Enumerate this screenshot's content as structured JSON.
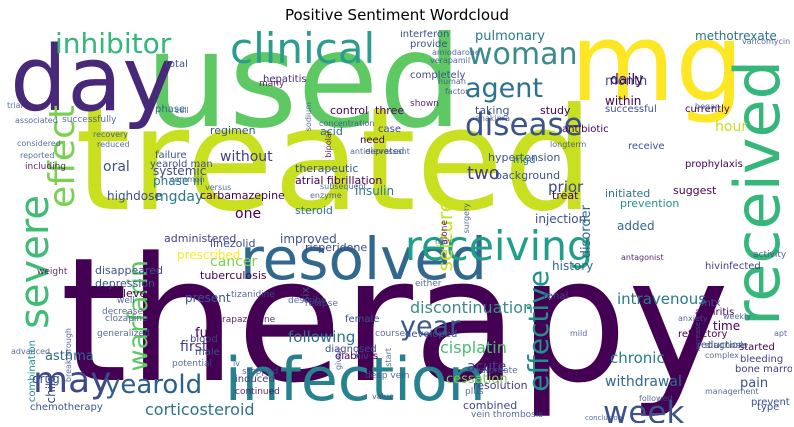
{
  "title": "Positive Sentiment Wordcloud",
  "colormap": [
    "#440154",
    "#3b528b",
    "#21918c",
    "#5ec962",
    "#fde725"
  ],
  "words": [
    {
      "text": "therapy",
      "color": "#440154"
    },
    {
      "text": "treated",
      "color": "#c8e020"
    },
    {
      "text": "used",
      "color": "#5ec962"
    },
    {
      "text": "mg",
      "color": "#fde725"
    },
    {
      "text": "day",
      "color": "#482878"
    },
    {
      "text": "infection",
      "color": "#26828e"
    },
    {
      "text": "resolved",
      "color": "#31688e"
    },
    {
      "text": "receiving",
      "color": "#1f9e89"
    },
    {
      "text": "received",
      "color": "#35b779"
    },
    {
      "text": "clinical",
      "color": "#2a9d8c"
    },
    {
      "text": "severe",
      "color": "#3ebc74"
    },
    {
      "text": "effect",
      "color": "#7ad151"
    },
    {
      "text": "inhibitor",
      "color": "#35b779"
    },
    {
      "text": "woman",
      "color": "#3b8b8c"
    },
    {
      "text": "disease",
      "color": "#3b528b"
    },
    {
      "text": "agent",
      "color": "#2c728e"
    },
    {
      "text": "may",
      "color": "#3e4989"
    },
    {
      "text": "yearold",
      "color": "#2b5f8c"
    },
    {
      "text": "week",
      "color": "#3b528b"
    },
    {
      "text": "year",
      "color": "#38588c"
    },
    {
      "text": "effective",
      "color": "#21918c"
    },
    {
      "text": "warfarin",
      "color": "#5ec962"
    },
    {
      "text": "corticosteroid",
      "color": "#2c728e"
    },
    {
      "text": "discontinuation",
      "color": "#3b8b8c"
    },
    {
      "text": "intravenous",
      "color": "#2a788e"
    },
    {
      "text": "withdrawal",
      "color": "#31688e"
    },
    {
      "text": "cisplatin",
      "color": "#44bf70"
    },
    {
      "text": "following",
      "color": "#2c728e"
    },
    {
      "text": "chronic",
      "color": "#287d8e"
    },
    {
      "text": "acute",
      "color": "#433e85"
    },
    {
      "text": "hour",
      "color": "#c2df23"
    },
    {
      "text": "month",
      "color": "#3b528b"
    },
    {
      "text": "within",
      "color": "#440154"
    },
    {
      "text": "daily",
      "color": "#440154"
    },
    {
      "text": "pulmonary",
      "color": "#2a788e"
    },
    {
      "text": "methotrexate",
      "color": "#2c728e"
    },
    {
      "text": "without",
      "color": "#433e85"
    },
    {
      "text": "phase iii",
      "color": "#2a788e"
    },
    {
      "text": "mgday",
      "color": "#2a788e"
    },
    {
      "text": "systemic",
      "color": "#3e4989"
    },
    {
      "text": "highdose",
      "color": "#3b528b"
    },
    {
      "text": "oral",
      "color": "#3b528b"
    },
    {
      "text": "two",
      "color": "#433e85"
    },
    {
      "text": "prior",
      "color": "#3e4989"
    },
    {
      "text": "seizure",
      "color": "#c8e020"
    },
    {
      "text": "disorder",
      "color": "#31688e"
    },
    {
      "text": "first",
      "color": "#433e85"
    },
    {
      "text": "fu",
      "color": "#440154"
    },
    {
      "text": "asthma",
      "color": "#31688e"
    },
    {
      "text": "child",
      "color": "#3e4989"
    },
    {
      "text": "cancer",
      "color": "#7ad151"
    },
    {
      "text": "one",
      "color": "#440154"
    },
    {
      "text": "present",
      "color": "#3b528b"
    },
    {
      "text": "improved",
      "color": "#3b528b"
    },
    {
      "text": "history",
      "color": "#31688e"
    },
    {
      "text": "added",
      "color": "#31688e"
    },
    {
      "text": "pain",
      "color": "#3b528b"
    },
    {
      "text": "time",
      "color": "#440154"
    },
    {
      "text": "six",
      "color": "#3b528b"
    },
    {
      "text": "cessation",
      "color": "#7ad151"
    },
    {
      "text": "combined",
      "color": "#3e4989"
    },
    {
      "text": "resolution",
      "color": "#433e85"
    },
    {
      "text": "prescribed",
      "color": "#fde725"
    },
    {
      "text": "carbamazepine",
      "color": "#440154"
    },
    {
      "text": "linezolid",
      "color": "#3b528b"
    },
    {
      "text": "tuberculosis",
      "color": "#440154"
    },
    {
      "text": "risperidone",
      "color": "#3e4989"
    },
    {
      "text": "insulin",
      "color": "#2a788e"
    },
    {
      "text": "steroid",
      "color": "#2c728e"
    },
    {
      "text": "injection",
      "color": "#3b528b"
    },
    {
      "text": "treat",
      "color": "#440154"
    },
    {
      "text": "initiated",
      "color": "#2c728e"
    },
    {
      "text": "prevention",
      "color": "#21918c"
    },
    {
      "text": "suggest",
      "color": "#440154"
    },
    {
      "text": "hypertension",
      "color": "#3b528b"
    },
    {
      "text": "background",
      "color": "#3b528b"
    },
    {
      "text": "atrial fibrillation",
      "color": "#440154"
    },
    {
      "text": "therapeutic",
      "color": "#3b528b"
    },
    {
      "text": "regimen",
      "color": "#3b528b"
    },
    {
      "text": "hepatitis",
      "color": "#482878"
    },
    {
      "text": "study",
      "color": "#440154"
    },
    {
      "text": "successful",
      "color": "#3b528b"
    },
    {
      "text": "taking",
      "color": "#3b528b"
    },
    {
      "text": "control",
      "color": "#440154"
    },
    {
      "text": "three",
      "color": "#440154"
    },
    {
      "text": "acid",
      "color": "#31688e"
    },
    {
      "text": "case",
      "color": "#3e4989"
    },
    {
      "text": "need",
      "color": "#440154"
    },
    {
      "text": "elevated",
      "color": "#3b528b"
    },
    {
      "text": "mgd",
      "color": "#2c728e"
    },
    {
      "text": "failure",
      "color": "#3b528b"
    },
    {
      "text": "yearold man",
      "color": "#3b528b"
    },
    {
      "text": "administered",
      "color": "#433e85"
    },
    {
      "text": "disappeared",
      "color": "#3b528b"
    },
    {
      "text": "depression",
      "color": "#3b528b"
    },
    {
      "text": "level",
      "color": "#440154"
    },
    {
      "text": "male",
      "color": "#3b528b"
    },
    {
      "text": "diagnosed",
      "color": "#3e4989"
    },
    {
      "text": "combination",
      "color": "#21918c"
    },
    {
      "text": "chemotherapy",
      "color": "#3b528b"
    },
    {
      "text": "induced",
      "color": "#433e85"
    },
    {
      "text": "diabetes",
      "color": "#440154"
    },
    {
      "text": "female",
      "color": "#3b528b"
    },
    {
      "text": "developed",
      "color": "#3b528b"
    },
    {
      "text": "blood",
      "color": "#433e85"
    },
    {
      "text": "renal",
      "color": "#433e85"
    },
    {
      "text": "bleeding",
      "color": "#433e85"
    },
    {
      "text": "bone marrow",
      "color": "#433e85"
    },
    {
      "text": "started",
      "color": "#440154"
    },
    {
      "text": "prevent",
      "color": "#3b528b"
    },
    {
      "text": "type",
      "color": "#3b528b"
    },
    {
      "text": "reduction",
      "color": "#3b528b"
    },
    {
      "text": "diagnosis",
      "color": "#3b528b"
    },
    {
      "text": "refractory",
      "color": "#440154"
    },
    {
      "text": "arthritis",
      "color": "#440154"
    },
    {
      "text": "hivinfected",
      "color": "#433e85"
    },
    {
      "text": "receive",
      "color": "#3b528b"
    },
    {
      "text": "prophylaxis",
      "color": "#440154"
    },
    {
      "text": "currently",
      "color": "#440154"
    },
    {
      "text": "antibiotic",
      "color": "#440154"
    },
    {
      "text": "provide",
      "color": "#3b528b"
    },
    {
      "text": "interferon",
      "color": "#3b528b"
    },
    {
      "text": "completely",
      "color": "#3b528b"
    },
    {
      "text": "total",
      "color": "#3b528b"
    },
    {
      "text": "phase",
      "color": "#31688e"
    },
    {
      "text": "many",
      "color": "#440154"
    },
    {
      "text": "shown",
      "color": "#440154"
    },
    {
      "text": "trial",
      "color": "#3b528b"
    },
    {
      "text": "successfully",
      "color": "#3b528b"
    },
    {
      "text": "associated",
      "color": "#3b528b"
    },
    {
      "text": "considered",
      "color": "#3b528b"
    },
    {
      "text": "reported",
      "color": "#3b528b"
    },
    {
      "text": "including",
      "color": "#440154"
    },
    {
      "text": "relapse",
      "color": "#3b528b"
    },
    {
      "text": "course",
      "color": "#3b528b"
    },
    {
      "text": "plus",
      "color": "#3b528b"
    },
    {
      "text": "either",
      "color": "#3b528b"
    },
    {
      "text": "clozapine",
      "color": "#3b528b"
    },
    {
      "text": "generalized",
      "color": "#3b528b"
    },
    {
      "text": "decrease",
      "color": "#3b528b"
    },
    {
      "text": "potential",
      "color": "#3b528b"
    },
    {
      "text": "drug",
      "color": "#3b528b"
    },
    {
      "text": "continued",
      "color": "#440154"
    },
    {
      "text": "advanced",
      "color": "#3b528b"
    },
    {
      "text": "well",
      "color": "#3b528b"
    },
    {
      "text": "weight",
      "color": "#440154"
    },
    {
      "text": "stopped",
      "color": "#3b528b"
    },
    {
      "text": "deep vein",
      "color": "#3b528b"
    },
    {
      "text": "vein thrombosis",
      "color": "#3b528b"
    },
    {
      "text": "value",
      "color": "#3b528b"
    },
    {
      "text": "weekly",
      "color": "#3b528b"
    },
    {
      "text": "mtx",
      "color": "#3b528b"
    },
    {
      "text": "complex",
      "color": "#3b528b"
    },
    {
      "text": "management",
      "color": "#3b528b"
    },
    {
      "text": "conclusion",
      "color": "#3b528b"
    },
    {
      "text": "followed",
      "color": "#3b528b"
    },
    {
      "text": "antagonist",
      "color": "#440154"
    },
    {
      "text": "activity",
      "color": "#3b528b"
    },
    {
      "text": "valproate",
      "color": "#3b528b"
    },
    {
      "text": "given",
      "color": "#3b528b"
    },
    {
      "text": "hiv",
      "color": "#3b528b"
    },
    {
      "text": "tirapazamine",
      "color": "#440154"
    },
    {
      "text": "tizanidine",
      "color": "#3b528b"
    },
    {
      "text": "describe",
      "color": "#3b528b"
    },
    {
      "text": "alone",
      "color": "#440154"
    },
    {
      "text": "surgery",
      "color": "#3b528b"
    },
    {
      "text": "human",
      "color": "#3b528b"
    },
    {
      "text": "factor",
      "color": "#3b528b"
    },
    {
      "text": "amiodarone",
      "color": "#3b528b"
    },
    {
      "text": "verapamil",
      "color": "#3b528b"
    },
    {
      "text": "vancomycin",
      "color": "#3b528b"
    },
    {
      "text": "longterm",
      "color": "#3b528b"
    },
    {
      "text": "antidepressant",
      "color": "#3b528b"
    },
    {
      "text": "common",
      "color": "#3b528b"
    },
    {
      "text": "recovery",
      "color": "#3b528b"
    },
    {
      "text": "reduced",
      "color": "#3b528b"
    },
    {
      "text": "anxiety",
      "color": "#3b528b"
    },
    {
      "text": "new",
      "color": "#3b528b"
    },
    {
      "text": "increase",
      "color": "#3b528b"
    },
    {
      "text": "apt",
      "color": "#3b528b"
    },
    {
      "text": "enzyme",
      "color": "#3b528b"
    },
    {
      "text": "subsequent",
      "color": "#3b528b"
    },
    {
      "text": "versus",
      "color": "#3b528b"
    },
    {
      "text": "cell",
      "color": "#3b528b"
    },
    {
      "text": "bipolar",
      "color": "#440154"
    },
    {
      "text": "began",
      "color": "#3b528b"
    },
    {
      "text": "start",
      "color": "#3b528b"
    },
    {
      "text": "iv",
      "color": "#3b528b"
    },
    {
      "text": "mild",
      "color": "#3b528b"
    },
    {
      "text": "sodium",
      "color": "#3b528b"
    },
    {
      "text": "concentration",
      "color": "#3b528b"
    },
    {
      "text": "breakthrough",
      "color": "#3b528b"
    },
    {
      "text": "anakinra",
      "color": "#3b528b"
    }
  ]
}
